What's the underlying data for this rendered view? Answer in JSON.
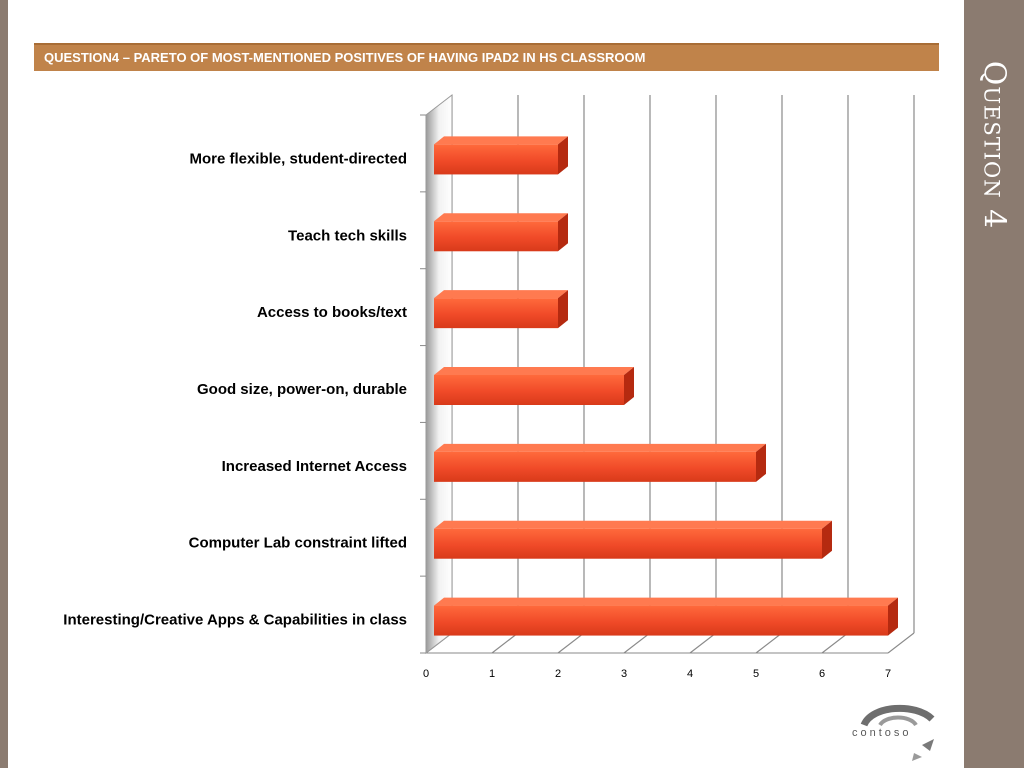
{
  "slide": {
    "side_title": "Question 4",
    "header_title": "QUESTION4 – PARETO OF MOST-MENTIONED POSITIVES  OF HAVING IPAD2 IN HS CLASSROOM",
    "logo_text": "contoso"
  },
  "colors": {
    "side_band": "#8b7b70",
    "header_bar": "#c0834a",
    "bar_front": "#f04a28",
    "bar_top": "#ff7a50",
    "bar_side": "#b52a10"
  },
  "chart_data": {
    "type": "bar",
    "orientation": "horizontal",
    "style": "3d",
    "categories": [
      "More flexible, student-directed",
      "Teach tech skills",
      "Access to books/text",
      "Good size, power-on, durable",
      "Increased Internet Access",
      "Computer Lab constraint lifted",
      "Interesting/Creative Apps & Capabilities in class"
    ],
    "values": [
      2,
      2,
      2,
      3,
      5,
      6,
      7
    ],
    "xlim": [
      0,
      7
    ],
    "xticks": [
      "0",
      "1",
      "2",
      "3",
      "4",
      "5",
      "6",
      "7"
    ],
    "grid": true,
    "legend": false
  }
}
